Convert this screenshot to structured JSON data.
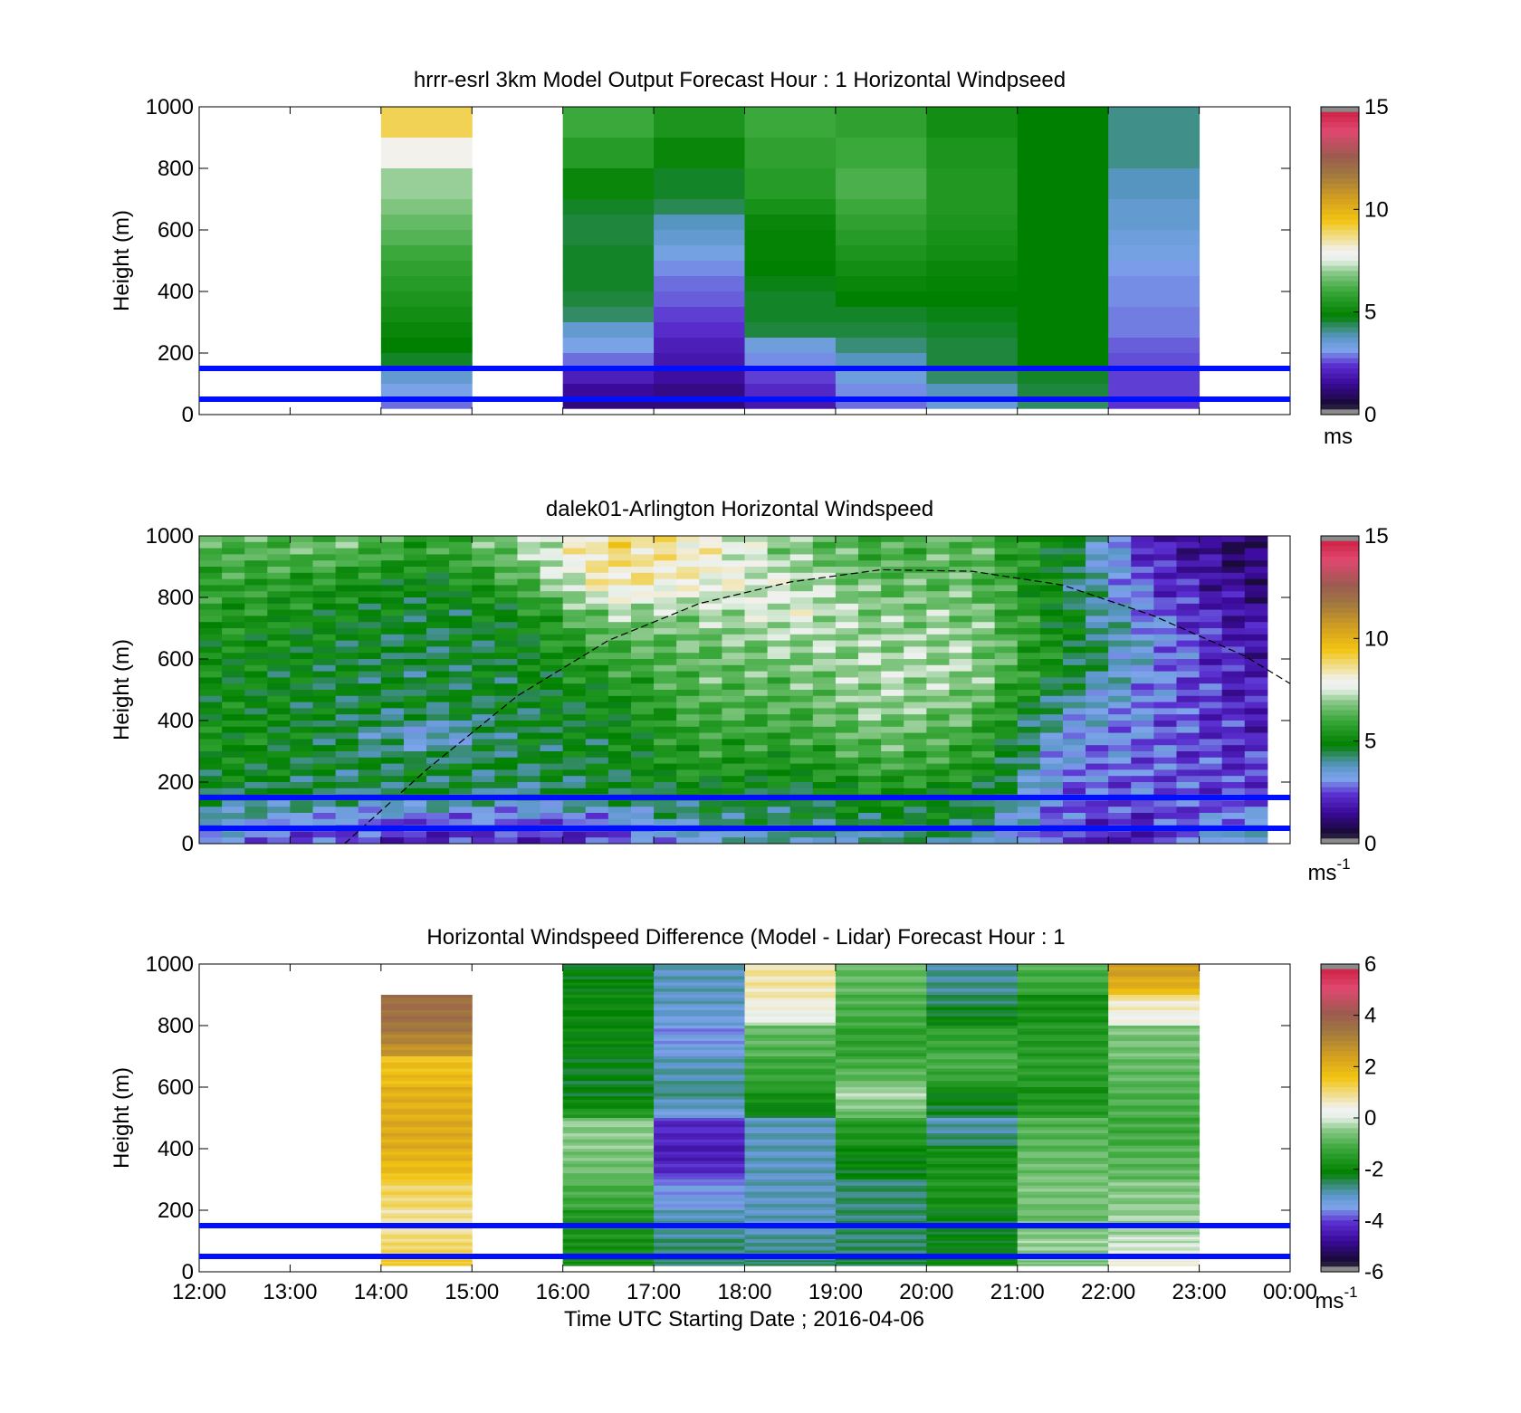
{
  "chart_data": [
    {
      "type": "heatmap",
      "title": "hrrr-esrl 3km Model Output   Forecast Hour : 1 Horizontal Windpseed",
      "ylabel": "Height (m)",
      "ylim": [
        0,
        1000
      ],
      "yticks": [
        "0",
        "200",
        "400",
        "600",
        "800",
        "1000"
      ],
      "xlim_hours_utc": [
        12,
        24
      ],
      "colorbar": {
        "min": 0,
        "max": 15,
        "ticks": [
          "0",
          "5",
          "10",
          "15"
        ],
        "unit": "ms"
      },
      "reference_heights_m": [
        150,
        50
      ],
      "height_bins_m": [
        1000,
        900,
        800,
        700,
        650,
        600,
        550,
        500,
        450,
        400,
        350,
        300,
        250,
        200,
        150,
        100,
        50
      ],
      "columns": [
        {
          "hour": 14,
          "speed_ms": [
            9.0,
            8.0,
            7.0,
            6.8,
            6.5,
            6.3,
            6.0,
            5.8,
            5.6,
            5.4,
            5.2,
            5.0,
            4.8,
            4.6,
            3.6,
            3.2,
            2.8
          ]
        },
        {
          "hour": 16,
          "speed_ms": [
            6.0,
            5.6,
            5.0,
            4.6,
            4.5,
            4.5,
            4.6,
            4.6,
            4.6,
            4.5,
            4.3,
            3.6,
            3.2,
            2.8,
            2.0,
            1.5,
            1.2
          ]
        },
        {
          "hour": 17,
          "speed_ms": [
            5.4,
            5.0,
            4.6,
            4.4,
            3.8,
            3.6,
            3.3,
            3.0,
            2.8,
            2.7,
            2.5,
            2.3,
            2.0,
            1.8,
            1.6,
            1.3,
            1.2
          ]
        },
        {
          "hour": 18,
          "speed_ms": [
            6.0,
            5.8,
            5.6,
            5.3,
            5.0,
            4.9,
            4.9,
            4.8,
            4.7,
            4.6,
            4.6,
            4.5,
            3.4,
            3.0,
            2.5,
            2.2,
            1.8
          ]
        },
        {
          "hour": 19,
          "speed_ms": [
            5.8,
            6.0,
            6.2,
            6.0,
            5.8,
            5.6,
            5.4,
            5.2,
            5.0,
            4.8,
            4.6,
            4.5,
            4.2,
            3.8,
            3.4,
            3.0,
            2.8
          ]
        },
        {
          "hour": 20,
          "speed_ms": [
            5.2,
            5.4,
            5.5,
            5.5,
            5.4,
            5.3,
            5.2,
            5.0,
            4.9,
            4.8,
            4.7,
            4.6,
            4.5,
            4.5,
            4.3,
            3.8,
            3.5
          ]
        },
        {
          "hour": 21,
          "speed_ms": [
            4.8,
            4.8,
            4.8,
            4.8,
            4.8,
            4.8,
            4.8,
            4.8,
            4.8,
            4.8,
            4.8,
            4.8,
            4.8,
            4.8,
            4.6,
            4.5,
            4.3
          ]
        },
        {
          "hour": 22,
          "speed_ms": [
            4.1,
            4.1,
            3.8,
            3.6,
            3.6,
            3.4,
            3.3,
            3.1,
            3.0,
            3.0,
            2.9,
            2.9,
            2.7,
            2.6,
            2.5,
            2.5,
            2.4
          ]
        }
      ]
    },
    {
      "type": "heatmap",
      "title": "dalek01-Arlington  Horizontal Windspeed",
      "ylabel": "Height (m)",
      "ylim": [
        0,
        1000
      ],
      "yticks": [
        "0",
        "200",
        "400",
        "600",
        "800",
        "1000"
      ],
      "xlim_hours_utc": [
        12,
        24
      ],
      "colorbar": {
        "min": 0,
        "max": 15,
        "ticks": [
          "0",
          "5",
          "10",
          "15"
        ],
        "unit": "ms",
        "unit_exponent": "-1"
      },
      "reference_heights_m": [
        150,
        50
      ],
      "overlay_curve_hours_height_m": [
        [
          13.6,
          0
        ],
        [
          14.5,
          240
        ],
        [
          15.5,
          480
        ],
        [
          16.5,
          660
        ],
        [
          17.5,
          780
        ],
        [
          18.5,
          850
        ],
        [
          19.5,
          890
        ],
        [
          20.5,
          885
        ],
        [
          21.5,
          840
        ],
        [
          22.5,
          740
        ],
        [
          23.5,
          610
        ],
        [
          24.0,
          520
        ]
      ],
      "lidar_coarse_speed_ms": {
        "heights_m": [
          950,
          850,
          750,
          650,
          550,
          450,
          350,
          250,
          150,
          75,
          25
        ],
        "rows": [
          {
            "hour": 12.5,
            "speed_ms": [
              6.2,
              5.8,
              5.5,
              5.2,
              5.0,
              5.0,
              5.2,
              5.0,
              4.4,
              3.6,
              3.0
            ]
          },
          {
            "hour": 13.5,
            "speed_ms": [
              6.5,
              5.4,
              5.0,
              4.8,
              4.6,
              4.6,
              4.6,
              4.5,
              4.2,
              2.9,
              2.4
            ]
          },
          {
            "hour": 14.5,
            "speed_ms": [
              5.6,
              4.8,
              4.6,
              4.5,
              4.5,
              4.7,
              3.2,
              4.7,
              4.4,
              2.6,
              2.2
            ]
          },
          {
            "hour": 15.5,
            "speed_ms": [
              6.8,
              6.0,
              5.0,
              4.8,
              4.7,
              4.6,
              4.6,
              4.5,
              4.0,
              2.7,
              2.2
            ]
          },
          {
            "hour": 16.5,
            "speed_ms": [
              8.8,
              8.5,
              7.0,
              6.2,
              5.6,
              5.0,
              4.8,
              4.7,
              4.5,
              2.8,
              2.3
            ]
          },
          {
            "hour": 17.5,
            "speed_ms": [
              8.2,
              8.0,
              7.0,
              6.5,
              6.4,
              6.2,
              5.8,
              5.6,
              4.6,
              4.3,
              3.6
            ]
          },
          {
            "hour": 18.5,
            "speed_ms": [
              6.8,
              7.4,
              7.6,
              7.0,
              6.5,
              6.2,
              5.8,
              5.2,
              4.5,
              4.4,
              3.8
            ]
          },
          {
            "hour": 19.5,
            "speed_ms": [
              6.0,
              6.4,
              6.8,
              7.0,
              7.2,
              7.0,
              6.6,
              6.0,
              5.2,
              4.6,
              4.0
            ]
          },
          {
            "hour": 20.5,
            "speed_ms": [
              6.5,
              6.5,
              6.8,
              7.0,
              7.0,
              6.6,
              6.0,
              5.6,
              4.8,
              4.6,
              4.2
            ]
          },
          {
            "hour": 21.5,
            "speed_ms": [
              4.8,
              4.6,
              4.8,
              5.0,
              4.8,
              3.8,
              3.3,
              3.0,
              2.8,
              2.5,
              2.2
            ]
          },
          {
            "hour": 22.5,
            "speed_ms": [
              2.0,
              2.4,
              2.8,
              3.2,
              3.0,
              2.9,
              2.8,
              2.7,
              2.5,
              2.2,
              2.0
            ]
          },
          {
            "hour": 23.5,
            "speed_ms": [
              1.0,
              1.3,
              1.6,
              1.8,
              1.9,
              2.0,
              2.1,
              2.3,
              2.6,
              3.2,
              3.8
            ]
          }
        ]
      }
    },
    {
      "type": "heatmap",
      "title": "Horizontal Windspeed Difference (Model - Lidar) Forecast Hour : 1",
      "ylabel": "Height (m)",
      "xlabel": "Time UTC  Starting Date ; 2016-04-06",
      "ylim": [
        0,
        1000
      ],
      "yticks": [
        "0",
        "200",
        "400",
        "600",
        "800",
        "1000"
      ],
      "xlim_hours_utc": [
        12,
        24
      ],
      "xticks": [
        "12:00",
        "13:00",
        "14:00",
        "15:00",
        "16:00",
        "17:00",
        "18:00",
        "19:00",
        "20:00",
        "21:00",
        "22:00",
        "23:00",
        "00:00"
      ],
      "colorbar": {
        "min": -6,
        "max": 6,
        "ticks": [
          "-6",
          "-4",
          "-2",
          "0",
          "2",
          "4",
          "6"
        ],
        "unit": "ms",
        "unit_exponent": "-1"
      },
      "reference_heights_m": [
        150,
        50
      ],
      "height_bins_m": [
        950,
        850,
        750,
        650,
        550,
        450,
        350,
        250,
        150,
        75,
        25
      ],
      "columns": [
        {
          "hour": 14,
          "diff_ms": [
            null,
            3.6,
            3.4,
            1.6,
            2.0,
            2.2,
            2.0,
            1.2,
            0.8,
            1.0,
            1.4
          ]
        },
        {
          "hour": 16,
          "diff_ms": [
            -2.2,
            -2.0,
            -2.0,
            -2.2,
            -2.4,
            -0.5,
            -0.6,
            -1.0,
            -1.6,
            -1.8,
            -1.8
          ]
        },
        {
          "hour": 17,
          "diff_ms": [
            -3.0,
            -3.0,
            -3.6,
            -3.0,
            -2.6,
            -4.2,
            -4.5,
            -3.6,
            -3.0,
            -2.6,
            -2.6
          ]
        },
        {
          "hour": 18,
          "diff_ms": [
            0.8,
            0.6,
            -0.8,
            -1.2,
            -1.6,
            -3.0,
            -3.0,
            -3.0,
            -3.0,
            -2.8,
            -2.6
          ]
        },
        {
          "hour": 19,
          "diff_ms": [
            -0.8,
            -1.0,
            -1.4,
            -1.2,
            -0.2,
            -1.5,
            -2.0,
            -2.6,
            -2.6,
            -2.6,
            -2.4
          ]
        },
        {
          "hour": 20,
          "diff_ms": [
            -2.8,
            -2.6,
            -1.4,
            -1.0,
            -2.0,
            -3.0,
            -1.8,
            -1.6,
            -2.2,
            -2.2,
            -2.0
          ]
        },
        {
          "hour": 21,
          "diff_ms": [
            -1.0,
            -1.8,
            -1.6,
            -1.4,
            -1.8,
            -1.0,
            -0.8,
            -0.6,
            -0.8,
            -0.4,
            -0.6
          ]
        },
        {
          "hour": 22,
          "diff_ms": [
            2.6,
            0.8,
            -0.6,
            -0.8,
            -1.0,
            -1.2,
            -1.0,
            -0.6,
            -0.4,
            -0.2,
            0.4
          ]
        }
      ]
    }
  ]
}
